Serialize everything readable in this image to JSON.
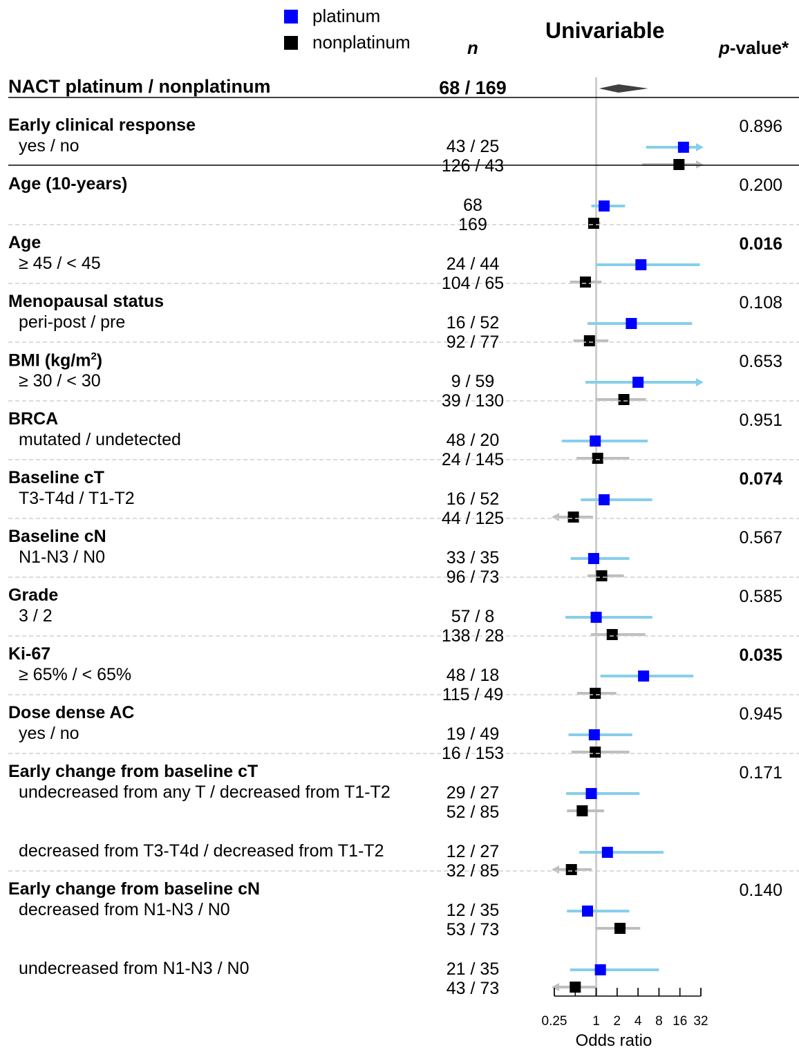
{
  "legend": [
    {
      "label": "platinum",
      "color": "#0000ff"
    },
    {
      "label": "nonplatinum",
      "color": "#000000"
    }
  ],
  "header": {
    "n": "n",
    "univariable": "Univariable",
    "pvalue_italic": "p",
    "pvalue_rest": "-value*"
  },
  "overall": {
    "label": "NACT platinum / nonplatinum",
    "n": "68 / 169"
  },
  "colors": {
    "platinum_line": "#87ceeb",
    "nonplatinum_line": "#bebebe",
    "diamond": "#404040",
    "refline": "#cccccc"
  },
  "chart_data": {
    "type": "forest",
    "xlabel": "Odds ratio",
    "xscale": "log2",
    "xlim": [
      0.25,
      32
    ],
    "ticks": [
      0.25,
      1,
      2,
      4,
      8,
      16,
      32
    ],
    "tick_labels": [
      "0.25",
      "1",
      "2",
      "4",
      "8",
      "16",
      "32"
    ],
    "reference": 1,
    "overall_diamond": {
      "lower": 1.1,
      "estimate": 2.1,
      "upper": 5.6
    },
    "groups": [
      {
        "variable": "Early clinical response",
        "pvalue": "0.896",
        "bold_p": false,
        "rows": [
          {
            "level": "yes / no",
            "n_plat": "43 / 25",
            "n_nonplat": "126 / 43",
            "plat": {
              "or": 18,
              "lo": 5.2,
              "hi": 32,
              "arrow_hi": true
            },
            "nonplat": {
              "or": 15.5,
              "lo": 4.6,
              "hi": 32,
              "arrow_hi": true
            }
          }
        ]
      },
      {
        "variable": "Age (10-years)",
        "pvalue": "0.200",
        "bold_p": false,
        "rows": [
          {
            "level": "",
            "n_plat": "68",
            "n_nonplat": "169",
            "plat": {
              "or": 1.3,
              "lo": 0.85,
              "hi": 2.6
            },
            "nonplat": {
              "or": 0.92,
              "lo": 0.8,
              "hi": 1.15
            }
          }
        ]
      },
      {
        "variable": "Age",
        "pvalue": "0.016",
        "bold_p": true,
        "rows": [
          {
            "level": "≥ 45 / < 45",
            "n_plat": "24 / 44",
            "n_nonplat": "104 / 65",
            "plat": {
              "or": 4.4,
              "lo": 1.0,
              "hi": 31
            },
            "nonplat": {
              "or": 0.7,
              "lo": 0.42,
              "hi": 1.2
            }
          }
        ]
      },
      {
        "variable": "Menopausal status",
        "pvalue": "0.108",
        "bold_p": false,
        "rows": [
          {
            "level": "peri-post / pre",
            "n_plat": "16 / 52",
            "n_nonplat": "92 / 77",
            "plat": {
              "or": 3.2,
              "lo": 0.75,
              "hi": 24
            },
            "nonplat": {
              "or": 0.8,
              "lo": 0.47,
              "hi": 1.5
            }
          }
        ]
      },
      {
        "variable": "BMI (kg/m2)",
        "pvalue": "0.653",
        "bold_p": false,
        "rows": [
          {
            "level": "≥ 30 / < 30",
            "n_plat": "9 / 59",
            "n_nonplat": "39 / 130",
            "plat": {
              "or": 4.0,
              "lo": 0.7,
              "hi": 32,
              "arrow_hi": true
            },
            "nonplat": {
              "or": 2.5,
              "lo": 0.98,
              "hi": 5.2
            }
          }
        ]
      },
      {
        "variable": "BRCA",
        "pvalue": "0.951",
        "bold_p": false,
        "rows": [
          {
            "level": "mutated / undetected",
            "n_plat": "48 / 20",
            "n_nonplat": "24 / 145",
            "plat": {
              "or": 0.97,
              "lo": 0.32,
              "hi": 5.5
            },
            "nonplat": {
              "or": 1.05,
              "lo": 0.52,
              "hi": 3.0
            }
          }
        ]
      },
      {
        "variable": "Baseline cT",
        "pvalue": "0.074",
        "bold_p": true,
        "rows": [
          {
            "level": "T3-T4d / T1-T2",
            "n_plat": "16 / 52",
            "n_nonplat": "44 / 125",
            "plat": {
              "or": 1.3,
              "lo": 0.6,
              "hi": 6.4
            },
            "nonplat": {
              "or": 0.47,
              "lo": 0.25,
              "hi": 0.9,
              "arrow_lo": true
            }
          }
        ]
      },
      {
        "variable": "Baseline cN",
        "pvalue": "0.567",
        "bold_p": false,
        "rows": [
          {
            "level": "N1-N3 / N0",
            "n_plat": "33 / 35",
            "n_nonplat": "96 / 73",
            "plat": {
              "or": 0.92,
              "lo": 0.43,
              "hi": 3.0
            },
            "nonplat": {
              "or": 1.2,
              "lo": 0.75,
              "hi": 2.5
            }
          }
        ]
      },
      {
        "variable": "Grade",
        "pvalue": "0.585",
        "bold_p": false,
        "rows": [
          {
            "level": "3 / 2",
            "n_plat": "57 / 8",
            "n_nonplat": "138 / 28",
            "plat": {
              "or": 1.0,
              "lo": 0.36,
              "hi": 6.4
            },
            "nonplat": {
              "or": 1.7,
              "lo": 0.84,
              "hi": 5.1
            }
          }
        ]
      },
      {
        "variable": "Ki-67",
        "pvalue": "0.035",
        "bold_p": true,
        "rows": [
          {
            "level": "≥ 65% / < 65%",
            "n_plat": "48 / 18",
            "n_nonplat": "115 / 49",
            "plat": {
              "or": 4.8,
              "lo": 1.15,
              "hi": 25
            },
            "nonplat": {
              "or": 0.97,
              "lo": 0.53,
              "hi": 1.95
            }
          }
        ]
      },
      {
        "variable": "Dose dense AC",
        "pvalue": "0.945",
        "bold_p": false,
        "rows": [
          {
            "level": "yes / no",
            "n_plat": "19 / 49",
            "n_nonplat": "16 / 153",
            "plat": {
              "or": 0.94,
              "lo": 0.4,
              "hi": 3.3
            },
            "nonplat": {
              "or": 0.97,
              "lo": 0.44,
              "hi": 3.0
            }
          }
        ]
      },
      {
        "variable": "Early change from baseline cT",
        "pvalue": "0.171",
        "bold_p": false,
        "rows": [
          {
            "level": "undecreased from any T / decreased from T1-T2",
            "n_plat": "29 / 27",
            "n_nonplat": "52 / 85",
            "plat": {
              "or": 0.85,
              "lo": 0.37,
              "hi": 4.2
            },
            "nonplat": {
              "or": 0.63,
              "lo": 0.38,
              "hi": 1.3
            }
          },
          {
            "level": "decreased from T3-T4d / decreased from T1-T2",
            "n_plat": "12 / 27",
            "n_nonplat": "32 / 85",
            "plat": {
              "or": 1.45,
              "lo": 0.57,
              "hi": 9.3
            },
            "nonplat": {
              "or": 0.44,
              "lo": 0.25,
              "hi": 0.86,
              "arrow_lo": true
            }
          }
        ]
      },
      {
        "variable": "Early change from baseline cN",
        "pvalue": "0.140",
        "bold_p": false,
        "rows": [
          {
            "level": "decreased from N1-N3 / N0",
            "n_plat": "12 / 35",
            "n_nonplat": "53 / 73",
            "plat": {
              "or": 0.75,
              "lo": 0.38,
              "hi": 3.0
            },
            "nonplat": {
              "or": 2.2,
              "lo": 0.98,
              "hi": 4.3
            }
          },
          {
            "level": "undecreased from N1-N3 / N0",
            "n_plat": "21 / 35",
            "n_nonplat": "43 / 73",
            "plat": {
              "or": 1.15,
              "lo": 0.42,
              "hi": 8.0
            },
            "nonplat": {
              "or": 0.5,
              "lo": 0.25,
              "hi": 0.98,
              "arrow_lo": true
            }
          }
        ]
      }
    ]
  }
}
